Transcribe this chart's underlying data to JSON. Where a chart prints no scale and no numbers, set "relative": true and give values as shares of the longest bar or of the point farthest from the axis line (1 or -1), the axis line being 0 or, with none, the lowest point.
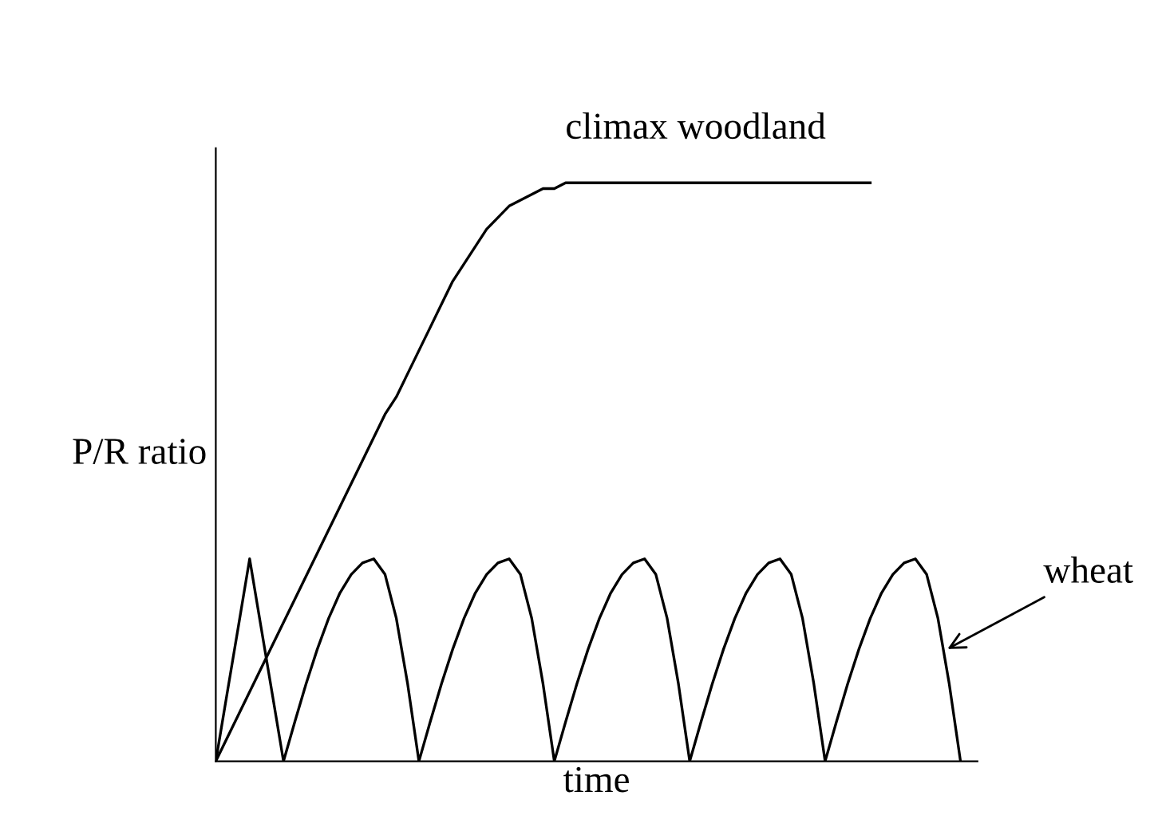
{
  "chart_data": {
    "type": "line",
    "relative": true,
    "xlabel": "time",
    "ylabel": "P/R ratio",
    "tick_labels": false,
    "legend": false,
    "marker": "none",
    "line_style": "solid",
    "categories": [
      null,
      null,
      null,
      null,
      null,
      null,
      null,
      null,
      null,
      null,
      null,
      null,
      null,
      null,
      null,
      null,
      null,
      null,
      null,
      null,
      null,
      null,
      null,
      null,
      null,
      null,
      null,
      null,
      null,
      null,
      null,
      null,
      null,
      null,
      null,
      null,
      null,
      null,
      null,
      null,
      null,
      null,
      null,
      null,
      null,
      null,
      null,
      null,
      null,
      null,
      null,
      null,
      null,
      null,
      null,
      null,
      null,
      null,
      null,
      null,
      null,
      null,
      null,
      null,
      null,
      null,
      null
    ],
    "series": [
      {
        "name": "climax woodland",
        "color": "#000000",
        "values": [
          0,
          0.04,
          0.08,
          0.12,
          0.16,
          0.2,
          0.24,
          0.28,
          0.32,
          0.36,
          0.4,
          0.44,
          0.48,
          0.52,
          0.56,
          0.6,
          0.63,
          0.67,
          0.71,
          0.75,
          0.79,
          0.83,
          0.86,
          0.89,
          0.92,
          0.94,
          0.96,
          0.97,
          0.98,
          0.99,
          0.99,
          1,
          1,
          1,
          1,
          1,
          1,
          1,
          1,
          1,
          1,
          1,
          1,
          1,
          1,
          1,
          1,
          1,
          1,
          1,
          1,
          1,
          1,
          1,
          1,
          1,
          1,
          1,
          1,
          null,
          null,
          null,
          null,
          null,
          null,
          null,
          null
        ]
      },
      {
        "name": "wheat",
        "color": "#000000",
        "values": [
          0,
          0.117,
          0.233,
          0.35,
          0.233,
          0.117,
          0,
          0.068,
          0.134,
          0.194,
          0.247,
          0.291,
          0.323,
          0.343,
          0.35,
          0.323,
          0.247,
          0.134,
          0,
          0.068,
          0.134,
          0.194,
          0.247,
          0.291,
          0.323,
          0.343,
          0.35,
          0.323,
          0.247,
          0.134,
          0,
          0.068,
          0.134,
          0.194,
          0.247,
          0.291,
          0.323,
          0.343,
          0.35,
          0.323,
          0.247,
          0.134,
          0,
          0.068,
          0.134,
          0.194,
          0.247,
          0.291,
          0.323,
          0.343,
          0.35,
          0.323,
          0.247,
          0.134,
          0,
          0.068,
          0.134,
          0.194,
          0.247,
          0.291,
          0.323,
          0.343,
          0.35,
          0.323,
          0.247,
          0.134,
          0
        ]
      }
    ]
  }
}
